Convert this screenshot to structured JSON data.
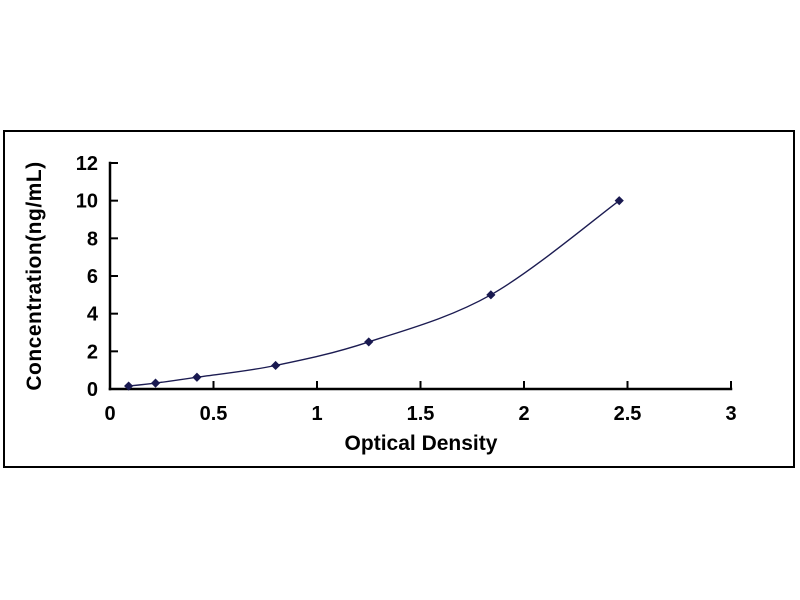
{
  "chart_data": {
    "type": "line",
    "title": "",
    "xlabel": "Optical Density",
    "ylabel": "Concentration(ng/mL)",
    "x": [
      0.09,
      0.22,
      0.42,
      0.8,
      1.25,
      1.84,
      2.46
    ],
    "y": [
      0.156,
      0.312,
      0.625,
      1.25,
      2.5,
      5,
      10
    ],
    "xlim": [
      0,
      3
    ],
    "ylim": [
      0,
      12
    ],
    "x_ticks": [
      0,
      0.5,
      1,
      1.5,
      2,
      2.5,
      3
    ],
    "x_tick_labels": [
      "0",
      "0.5",
      "1",
      "1.5",
      "2",
      "2.5",
      "3"
    ],
    "y_ticks": [
      0,
      2,
      4,
      6,
      8,
      10,
      12
    ],
    "y_tick_labels": [
      "0",
      "2",
      "4",
      "6",
      "8",
      "10",
      "12"
    ],
    "grid": false,
    "legend": null,
    "marker": "diamond",
    "colors": {
      "axis": "#000000",
      "line": "#1c1c52",
      "marker": "#191950",
      "background": "#ffffff"
    }
  }
}
